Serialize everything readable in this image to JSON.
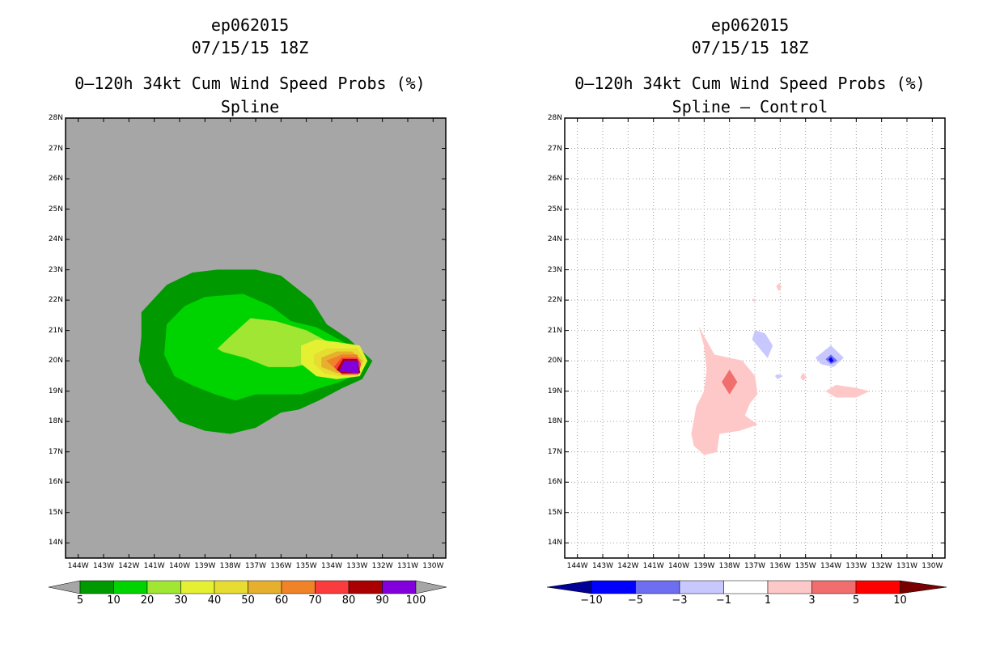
{
  "chart_data": [
    {
      "type": "heatmap",
      "storm_id": "ep062015",
      "datetime": "07/15/15 18Z",
      "title": "0–120h 34kt Cum Wind Speed Probs (%)",
      "subtitle": "Spline",
      "xlabel": "",
      "ylabel": "",
      "xlim": [
        -144.5,
        -129.5
      ],
      "ylim": [
        13.5,
        28.0
      ],
      "grid": false,
      "x_ticks": [
        "144W",
        "143W",
        "142W",
        "141W",
        "140W",
        "139W",
        "138W",
        "137W",
        "136W",
        "135W",
        "134W",
        "133W",
        "132W",
        "131W",
        "130W"
      ],
      "y_ticks": [
        "14N",
        "15N",
        "16N",
        "17N",
        "18N",
        "19N",
        "20N",
        "21N",
        "22N",
        "23N",
        "24N",
        "25N",
        "26N",
        "27N",
        "28N"
      ],
      "background_color": "#a6a6a6",
      "contour_levels": [
        5,
        10,
        20,
        30,
        40,
        50,
        60,
        70,
        80,
        90,
        100
      ],
      "colorbar_colors": [
        "#009a00",
        "#00d400",
        "#a0e632",
        "#e6f032",
        "#e6dc32",
        "#e6af2d",
        "#f08228",
        "#fa3c3c",
        "#aa0000",
        "#8200dc"
      ],
      "colorbar_labels": [
        "5",
        "10",
        "20",
        "30",
        "40",
        "50",
        "60",
        "70",
        "80",
        "90",
        "100"
      ],
      "regions": [
        {
          "level": 5,
          "color": "#009a00",
          "polygon": [
            [
              -141.5,
              21.6
            ],
            [
              -140.5,
              22.5
            ],
            [
              -139.5,
              22.9
            ],
            [
              -138.5,
              23.0
            ],
            [
              -137.0,
              23.0
            ],
            [
              -136.0,
              22.8
            ],
            [
              -134.8,
              22.0
            ],
            [
              -134.2,
              21.2
            ],
            [
              -133.3,
              20.7
            ],
            [
              -132.4,
              20.0
            ],
            [
              -132.8,
              19.4
            ],
            [
              -133.6,
              19.1
            ],
            [
              -134.5,
              18.7
            ],
            [
              -135.3,
              18.4
            ],
            [
              -136.0,
              18.3
            ],
            [
              -137.0,
              17.8
            ],
            [
              -138.0,
              17.6
            ],
            [
              -139.0,
              17.7
            ],
            [
              -140.0,
              18.0
            ],
            [
              -140.7,
              18.7
            ],
            [
              -141.3,
              19.3
            ],
            [
              -141.6,
              20.0
            ],
            [
              -141.5,
              20.8
            ]
          ]
        },
        {
          "level": 10,
          "color": "#00d400",
          "polygon": [
            [
              -140.5,
              21.2
            ],
            [
              -139.8,
              21.8
            ],
            [
              -139.0,
              22.1
            ],
            [
              -137.5,
              22.2
            ],
            [
              -136.4,
              21.8
            ],
            [
              -135.6,
              21.3
            ],
            [
              -134.6,
              21.1
            ],
            [
              -133.5,
              20.6
            ],
            [
              -132.7,
              20.1
            ],
            [
              -132.9,
              19.6
            ],
            [
              -133.7,
              19.3
            ],
            [
              -134.5,
              19.1
            ],
            [
              -135.2,
              18.9
            ],
            [
              -136.2,
              18.9
            ],
            [
              -137.0,
              18.9
            ],
            [
              -137.8,
              18.7
            ],
            [
              -138.6,
              18.9
            ],
            [
              -139.5,
              19.2
            ],
            [
              -140.2,
              19.5
            ],
            [
              -140.6,
              20.2
            ]
          ]
        },
        {
          "level": 20,
          "color": "#a0e632",
          "polygon": [
            [
              -138.5,
              20.4
            ],
            [
              -138.0,
              20.8
            ],
            [
              -137.2,
              21.4
            ],
            [
              -136.2,
              21.3
            ],
            [
              -135.0,
              21.0
            ],
            [
              -134.1,
              20.6
            ],
            [
              -133.4,
              20.3
            ],
            [
              -134.4,
              20.0
            ],
            [
              -135.5,
              19.8
            ],
            [
              -136.5,
              19.8
            ],
            [
              -137.4,
              20.1
            ],
            [
              -138.3,
              20.3
            ]
          ]
        },
        {
          "level": 30,
          "color": "#e6f032",
          "polygon": [
            [
              -135.2,
              20.5
            ],
            [
              -134.6,
              20.7
            ],
            [
              -133.7,
              20.6
            ],
            [
              -132.9,
              20.5
            ],
            [
              -132.6,
              20.0
            ],
            [
              -132.9,
              19.5
            ],
            [
              -133.8,
              19.4
            ],
            [
              -134.6,
              19.5
            ],
            [
              -135.2,
              19.9
            ]
          ]
        },
        {
          "level": 40,
          "color": "#e6dc32",
          "polygon": [
            [
              -134.7,
              20.2
            ],
            [
              -134.2,
              20.4
            ],
            [
              -133.5,
              20.4
            ],
            [
              -133.0,
              20.4
            ],
            [
              -132.7,
              20.0
            ],
            [
              -133.0,
              19.6
            ],
            [
              -133.7,
              19.5
            ],
            [
              -134.3,
              19.6
            ],
            [
              -134.7,
              19.9
            ]
          ]
        },
        {
          "level": 50,
          "color": "#e6af2d",
          "polygon": [
            [
              -134.4,
              20.1
            ],
            [
              -133.8,
              20.3
            ],
            [
              -133.2,
              20.3
            ],
            [
              -132.8,
              20.0
            ],
            [
              -133.1,
              19.6
            ],
            [
              -133.8,
              19.6
            ],
            [
              -134.4,
              19.8
            ]
          ]
        },
        {
          "level": 60,
          "color": "#f08228",
          "polygon": [
            [
              -134.2,
              20.0
            ],
            [
              -133.6,
              20.2
            ],
            [
              -133.0,
              20.2
            ],
            [
              -132.85,
              19.9
            ],
            [
              -133.2,
              19.65
            ],
            [
              -133.8,
              19.7
            ]
          ]
        },
        {
          "level": 70,
          "color": "#fa3c3c",
          "polygon": [
            [
              -133.9,
              19.8
            ],
            [
              -133.6,
              20.1
            ],
            [
              -133.0,
              20.1
            ],
            [
              -132.85,
              19.9
            ],
            [
              -132.95,
              19.55
            ],
            [
              -133.6,
              19.55
            ]
          ]
        },
        {
          "level": 80,
          "color": "#aa0000",
          "polygon": [
            [
              -133.8,
              19.7
            ],
            [
              -133.55,
              20.05
            ],
            [
              -133.0,
              20.05
            ],
            [
              -132.88,
              19.6
            ],
            [
              -133.6,
              19.6
            ]
          ]
        },
        {
          "level": 90,
          "color": "#8200dc",
          "polygon": [
            [
              -133.7,
              19.65
            ],
            [
              -133.5,
              20.0
            ],
            [
              -132.95,
              20.0
            ],
            [
              -132.95,
              19.6
            ]
          ]
        }
      ]
    },
    {
      "type": "heatmap",
      "storm_id": "ep062015",
      "datetime": "07/15/15 18Z",
      "title": "0–120h 34kt Cum Wind Speed Probs (%)",
      "subtitle": "Spline – Control",
      "xlabel": "",
      "ylabel": "",
      "xlim": [
        -144.5,
        -129.5
      ],
      "ylim": [
        13.5,
        28.0
      ],
      "grid": true,
      "x_ticks": [
        "144W",
        "143W",
        "142W",
        "141W",
        "140W",
        "139W",
        "138W",
        "137W",
        "136W",
        "135W",
        "134W",
        "133W",
        "132W",
        "131W",
        "130W"
      ],
      "y_ticks": [
        "14N",
        "15N",
        "16N",
        "17N",
        "18N",
        "19N",
        "20N",
        "21N",
        "22N",
        "23N",
        "24N",
        "25N",
        "26N",
        "27N",
        "28N"
      ],
      "background_color": "#ffffff",
      "contour_levels": [
        -10,
        -5,
        -3,
        -1,
        1,
        3,
        5,
        10
      ],
      "colorbar_colors": [
        "#000096",
        "#0000ff",
        "#6e6ef0",
        "#c8c8ff",
        "#ffffff",
        "#ffc8c8",
        "#f06e6e",
        "#ff0000",
        "#780000"
      ],
      "colorbar_labels": [
        "−10",
        "−5",
        "−3",
        "−1",
        "1",
        "3",
        "5",
        "10"
      ],
      "regions": [
        {
          "level": 1,
          "color": "#ffc8c8",
          "polygon": [
            [
              -139.2,
              21.1
            ],
            [
              -138.6,
              20.2
            ],
            [
              -137.5,
              20.0
            ],
            [
              -137.0,
              19.5
            ],
            [
              -136.9,
              18.9
            ],
            [
              -137.2,
              18.6
            ],
            [
              -137.4,
              18.2
            ],
            [
              -136.9,
              17.9
            ],
            [
              -137.6,
              17.7
            ],
            [
              -138.4,
              17.6
            ],
            [
              -138.5,
              17.0
            ],
            [
              -139.0,
              16.9
            ],
            [
              -139.4,
              17.2
            ],
            [
              -139.5,
              17.6
            ],
            [
              -139.3,
              18.5
            ],
            [
              -139.0,
              19.0
            ],
            [
              -138.9,
              19.7
            ],
            [
              -139.0,
              20.5
            ]
          ]
        },
        {
          "level": 3,
          "color": "#f06e6e",
          "polygon": [
            [
              -138.0,
              19.7
            ],
            [
              -137.7,
              19.3
            ],
            [
              -138.0,
              18.9
            ],
            [
              -138.3,
              19.3
            ]
          ]
        },
        {
          "level": 1,
          "color": "#ffc8c8",
          "polygon": [
            [
              -134.2,
              19.0
            ],
            [
              -133.8,
              19.2
            ],
            [
              -133.0,
              19.1
            ],
            [
              -132.5,
              19.0
            ],
            [
              -133.0,
              18.8
            ],
            [
              -133.8,
              18.8
            ]
          ]
        },
        {
          "level": 1,
          "color": "#ffc8c8",
          "polygon": [
            [
              -136.05,
              22.55
            ],
            [
              -135.95,
              22.45
            ],
            [
              -136.05,
              22.3
            ],
            [
              -136.15,
              22.45
            ]
          ]
        },
        {
          "level": 1,
          "color": "#ffc8c8",
          "polygon": [
            [
              -137.1,
              22.05
            ],
            [
              -136.95,
              22.0
            ],
            [
              -137.05,
              21.95
            ]
          ]
        },
        {
          "level": 1,
          "color": "#ffc8c8",
          "polygon": [
            [
              -135.1,
              19.6
            ],
            [
              -134.95,
              19.45
            ],
            [
              -135.1,
              19.35
            ],
            [
              -135.2,
              19.45
            ]
          ]
        },
        {
          "level": -1,
          "color": "#c8c8ff",
          "polygon": [
            [
              -137.0,
              21.0
            ],
            [
              -136.6,
              20.9
            ],
            [
              -136.3,
              20.5
            ],
            [
              -136.5,
              20.1
            ],
            [
              -136.8,
              20.4
            ],
            [
              -137.1,
              20.7
            ]
          ]
        },
        {
          "level": -1,
          "color": "#c8c8ff",
          "polygon": [
            [
              -134.6,
              20.1
            ],
            [
              -134.0,
              20.5
            ],
            [
              -133.5,
              20.1
            ],
            [
              -133.9,
              19.8
            ],
            [
              -134.4,
              19.9
            ]
          ]
        },
        {
          "level": -3,
          "color": "#6e6ef0",
          "polygon": [
            [
              -134.2,
              20.05
            ],
            [
              -134.0,
              20.2
            ],
            [
              -133.75,
              20.0
            ],
            [
              -134.0,
              19.9
            ]
          ]
        },
        {
          "level": -5,
          "color": "#0000ff",
          "polygon": [
            [
              -134.08,
              20.05
            ],
            [
              -134.0,
              20.12
            ],
            [
              -133.9,
              20.0
            ],
            [
              -134.0,
              19.95
            ]
          ]
        },
        {
          "level": -1,
          "color": "#c8c8ff",
          "polygon": [
            [
              -136.1,
              19.55
            ],
            [
              -135.9,
              19.5
            ],
            [
              -136.1,
              19.4
            ],
            [
              -136.2,
              19.5
            ]
          ]
        }
      ]
    }
  ]
}
